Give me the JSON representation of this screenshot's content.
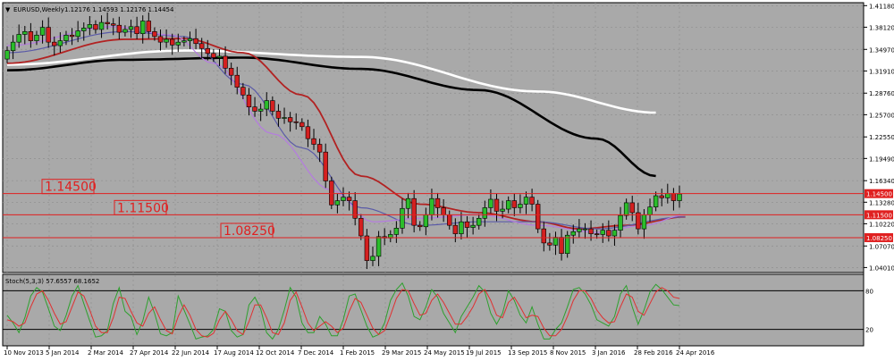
{
  "chart_data": [
    {
      "type": "candlestick",
      "title": "EURUSD,Weekly",
      "ohlc_label": "1.12176 1.14593 1.12176 1.14454",
      "y_ticks": [
        "1.41180",
        "1.38120",
        "1.34970",
        "1.31910",
        "1.28760",
        "1.25700",
        "1.22550",
        "1.19490",
        "1.16340",
        "1.13280",
        "1.10220",
        "1.07070",
        "1.04010"
      ],
      "x_ticks": [
        "10 Nov 2013",
        "5 Jan 2014",
        "2 Mar 2014",
        "27 Apr 2014",
        "22 Jun 2014",
        "17 Aug 2014",
        "12 Oct 2014",
        "7 Dec 2014",
        "1 Feb 2015",
        "29 Mar 2015",
        "24 May 2015",
        "19 Jul 2015",
        "13 Sep 2015",
        "8 Nov 2015",
        "3 Jan 2016",
        "28 Feb 2016",
        "24 Apr 2016"
      ],
      "ylim": [
        1.033,
        1.416
      ],
      "levels": [
        {
          "value": 1.145,
          "label": "1.14500",
          "axis_label": "1.14500"
        },
        {
          "value": 1.115,
          "label": "1.11500",
          "axis_label": "1.11500"
        },
        {
          "value": 1.0825,
          "label": "1.08250",
          "axis_label": "1.08250"
        }
      ],
      "close": [
        1.348,
        1.36,
        1.371,
        1.375,
        1.362,
        1.37,
        1.381,
        1.36,
        1.355,
        1.362,
        1.37,
        1.368,
        1.376,
        1.38,
        1.385,
        1.378,
        1.388,
        1.386,
        1.384,
        1.374,
        1.378,
        1.382,
        1.372,
        1.39,
        1.375,
        1.368,
        1.36,
        1.364,
        1.356,
        1.36,
        1.362,
        1.365,
        1.358,
        1.351,
        1.344,
        1.338,
        1.34,
        1.323,
        1.313,
        1.296,
        1.285,
        1.268,
        1.262,
        1.265,
        1.277,
        1.262,
        1.252,
        1.253,
        1.247,
        1.246,
        1.24,
        1.223,
        1.215,
        1.204,
        1.163,
        1.129,
        1.135,
        1.14,
        1.135,
        1.11,
        1.085,
        1.05,
        1.056,
        1.084,
        1.082,
        1.087,
        1.096,
        1.124,
        1.138,
        1.1,
        1.098,
        1.115,
        1.138,
        1.125,
        1.115,
        1.1,
        1.088,
        1.105,
        1.097,
        1.1,
        1.11,
        1.125,
        1.137,
        1.12,
        1.123,
        1.135,
        1.125,
        1.13,
        1.14,
        1.13,
        1.095,
        1.075,
        1.072,
        1.083,
        1.06,
        1.086,
        1.091,
        1.095,
        1.095,
        1.088,
        1.087,
        1.093,
        1.085,
        1.093,
        1.114,
        1.132,
        1.118,
        1.095,
        1.115,
        1.126,
        1.142,
        1.139,
        1.145,
        1.135,
        1.1445
      ],
      "ma_series": [
        {
          "color": "#ffffff",
          "points": [
            [
              0,
              1.328
            ],
            [
              30,
              1.348
            ],
            [
              60,
              1.339
            ],
            [
              90,
              1.29
            ],
            [
              110,
              1.26
            ]
          ]
        },
        {
          "color": "#000000",
          "points": [
            [
              0,
              1.32
            ],
            [
              20,
              1.335
            ],
            [
              40,
              1.338
            ],
            [
              60,
              1.322
            ],
            [
              80,
              1.292
            ],
            [
              100,
              1.223
            ],
            [
              110,
              1.17
            ]
          ]
        },
        {
          "color": "#b22222",
          "points": [
            [
              0,
              1.33
            ],
            [
              20,
              1.364
            ],
            [
              30,
              1.365
            ],
            [
              40,
              1.345
            ],
            [
              50,
              1.285
            ],
            [
              60,
              1.17
            ],
            [
              70,
              1.13
            ],
            [
              80,
              1.118
            ],
            [
              90,
              1.105
            ],
            [
              97,
              1.095
            ],
            [
              105,
              1.1
            ],
            [
              115,
              1.112
            ]
          ]
        },
        {
          "color": "#5a5aa8",
          "points": [
            [
              0,
              1.345
            ],
            [
              20,
              1.375
            ],
            [
              30,
              1.368
            ],
            [
              40,
              1.3
            ],
            [
              50,
              1.21
            ],
            [
              60,
              1.125
            ],
            [
              70,
              1.1
            ],
            [
              80,
              1.105
            ],
            [
              90,
              1.105
            ],
            [
              100,
              1.095
            ],
            [
              115,
              1.112
            ]
          ]
        },
        {
          "color": "#b57be0",
          "points": [
            [
              0,
              1.355
            ],
            [
              18,
              1.382
            ],
            [
              28,
              1.37
            ],
            [
              35,
              1.33
            ],
            [
              45,
              1.23
            ],
            [
              55,
              1.15
            ],
            [
              62,
              1.105
            ],
            [
              70,
              1.11
            ],
            [
              80,
              1.115
            ],
            [
              90,
              1.1
            ],
            [
              100,
              1.09
            ],
            [
              108,
              1.1
            ],
            [
              115,
              1.115
            ]
          ]
        }
      ]
    },
    {
      "type": "line",
      "title": "Stoch(5,3,3) 57.6557 68.1652",
      "ylim": [
        0,
        100
      ],
      "y_ticks": [
        "80",
        "20"
      ],
      "levels": [
        80,
        20
      ],
      "series": [
        {
          "color": "#2ea02e",
          "values": [
            42,
            30,
            15,
            38,
            72,
            85,
            78,
            52,
            25,
            18,
            42,
            72,
            88,
            60,
            33,
            8,
            10,
            18,
            60,
            85,
            48,
            40,
            12,
            33,
            70,
            45,
            13,
            10,
            15,
            72,
            50,
            28,
            5,
            8,
            10,
            20,
            52,
            48,
            18,
            8,
            12,
            58,
            70,
            52,
            15,
            5,
            20,
            50,
            85,
            70,
            30,
            15,
            15,
            40,
            28,
            10,
            10,
            35,
            72,
            75,
            50,
            25,
            8,
            12,
            30,
            65,
            82,
            92,
            72,
            40,
            35,
            55,
            82,
            70,
            45,
            30,
            15,
            40,
            55,
            70,
            88,
            78,
            45,
            28,
            45,
            80,
            65,
            42,
            30,
            55,
            28,
            5,
            5,
            20,
            30,
            55,
            82,
            85,
            75,
            58,
            35,
            30,
            25,
            40,
            75,
            88,
            55,
            28,
            50,
            78,
            90,
            82,
            70,
            58,
            57
          ]
        },
        {
          "color": "#e03030",
          "values": [
            35,
            32,
            25,
            30,
            55,
            75,
            80,
            65,
            45,
            28,
            32,
            55,
            78,
            72,
            50,
            25,
            15,
            15,
            38,
            70,
            68,
            48,
            30,
            25,
            45,
            55,
            35,
            18,
            13,
            40,
            58,
            42,
            20,
            10,
            8,
            14,
            35,
            48,
            35,
            18,
            12,
            32,
            58,
            58,
            38,
            15,
            12,
            30,
            65,
            78,
            55,
            30,
            18,
            25,
            32,
            25,
            15,
            22,
            48,
            68,
            62,
            42,
            22,
            12,
            18,
            42,
            68,
            82,
            80,
            60,
            42,
            45,
            65,
            75,
            62,
            45,
            28,
            28,
            40,
            55,
            75,
            82,
            65,
            42,
            38,
            62,
            70,
            55,
            38,
            42,
            40,
            22,
            10,
            10,
            20,
            40,
            65,
            80,
            80,
            68,
            50,
            38,
            30,
            32,
            55,
            75,
            70,
            48,
            42,
            60,
            78,
            85,
            80,
            70,
            68
          ]
        }
      ]
    }
  ]
}
